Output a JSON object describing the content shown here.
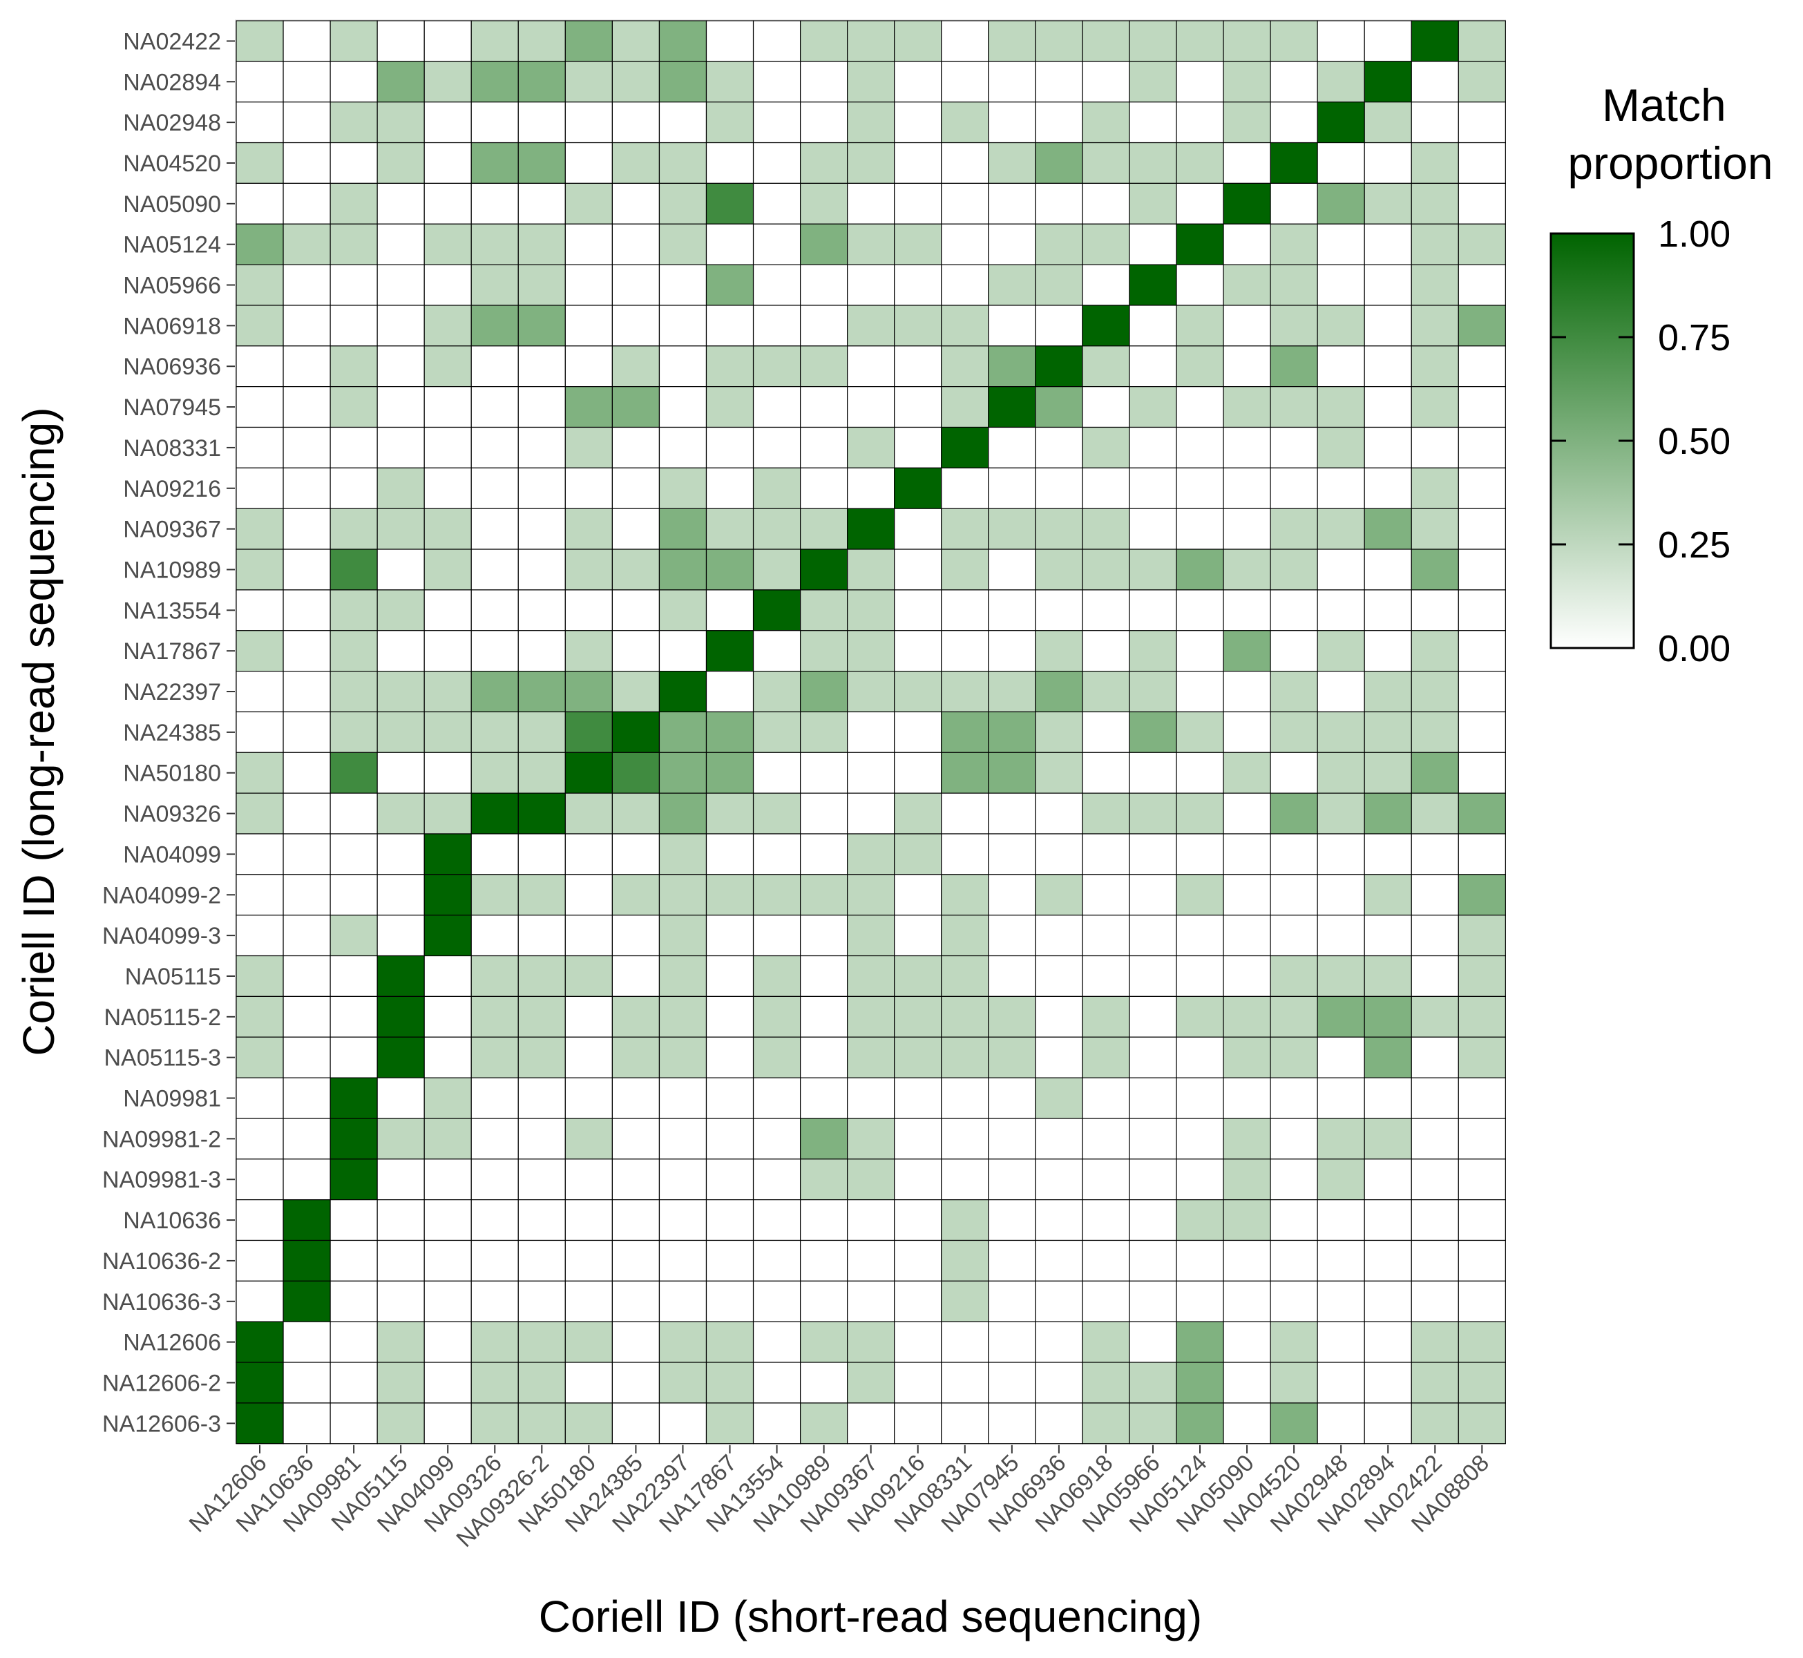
{
  "chart_data": {
    "type": "heatmap",
    "xlabel": "Coriell ID (short-read sequencing)",
    "ylabel": "Coriell ID (long-read sequencing)",
    "x_categories": [
      "NA12606",
      "NA10636",
      "NA09981",
      "NA05115",
      "NA04099",
      "NA09326",
      "NA09326-2",
      "NA50180",
      "NA24385",
      "NA22397",
      "NA17867",
      "NA13554",
      "NA10989",
      "NA09367",
      "NA09216",
      "NA08331",
      "NA07945",
      "NA06936",
      "NA06918",
      "NA05966",
      "NA05124",
      "NA05090",
      "NA04520",
      "NA02948",
      "NA02894",
      "NA02422",
      "NA08808"
    ],
    "y_categories": [
      "NA02422",
      "NA02894",
      "NA02948",
      "NA04520",
      "NA05090",
      "NA05124",
      "NA05966",
      "NA06918",
      "NA06936",
      "NA07945",
      "NA08331",
      "NA09216",
      "NA09367",
      "NA10989",
      "NA13554",
      "NA17867",
      "NA22397",
      "NA24385",
      "NA50180",
      "NA09326",
      "NA04099",
      "NA04099-2",
      "NA04099-3",
      "NA05115",
      "NA05115-2",
      "NA05115-3",
      "NA09981",
      "NA09981-2",
      "NA09981-3",
      "NA10636",
      "NA10636-2",
      "NA10636-3",
      "NA12606",
      "NA12606-2",
      "NA12606-3"
    ],
    "values": [
      [
        0.25,
        0,
        0.25,
        0,
        0,
        0.25,
        0.25,
        0.5,
        0.25,
        0.5,
        0,
        0,
        0.25,
        0.25,
        0.25,
        0,
        0.25,
        0.25,
        0.25,
        0.25,
        0.25,
        0.25,
        0.25,
        0,
        0,
        1,
        0.25
      ],
      [
        0,
        0,
        0,
        0.5,
        0.25,
        0.5,
        0.5,
        0.25,
        0.25,
        0.5,
        0.25,
        0,
        0,
        0.25,
        0,
        0,
        0,
        0,
        0,
        0.25,
        0,
        0.25,
        0,
        0.25,
        1,
        0,
        0.25
      ],
      [
        0,
        0,
        0.25,
        0.25,
        0,
        0,
        0,
        0,
        0,
        0,
        0.25,
        0,
        0,
        0.25,
        0,
        0.25,
        0,
        0,
        0.25,
        0,
        0,
        0.25,
        0,
        1,
        0.25,
        0,
        0
      ],
      [
        0.25,
        0,
        0,
        0.25,
        0,
        0.5,
        0.5,
        0,
        0.25,
        0.25,
        0,
        0,
        0.25,
        0.25,
        0,
        0,
        0.25,
        0.5,
        0.25,
        0.25,
        0.25,
        0,
        1,
        0,
        0,
        0.25,
        0
      ],
      [
        0,
        0,
        0.25,
        0,
        0,
        0,
        0,
        0.25,
        0,
        0.25,
        0.75,
        0,
        0.25,
        0,
        0,
        0,
        0,
        0,
        0,
        0.25,
        0,
        1,
        0,
        0.5,
        0.25,
        0.25,
        0
      ],
      [
        0.5,
        0.25,
        0.25,
        0,
        0.25,
        0.25,
        0.25,
        0,
        0,
        0.25,
        0,
        0,
        0.5,
        0.25,
        0.25,
        0,
        0,
        0.25,
        0.25,
        0,
        1,
        0,
        0.25,
        0,
        0,
        0.25,
        0.25
      ],
      [
        0.25,
        0,
        0,
        0,
        0,
        0.25,
        0.25,
        0,
        0,
        0,
        0.5,
        0,
        0,
        0,
        0,
        0,
        0.25,
        0.25,
        0,
        1,
        0,
        0.25,
        0.25,
        0,
        0,
        0.25,
        0
      ],
      [
        0.25,
        0,
        0,
        0,
        0.25,
        0.5,
        0.5,
        0,
        0,
        0,
        0,
        0,
        0,
        0.25,
        0.25,
        0.25,
        0,
        0,
        1,
        0,
        0.25,
        0,
        0.25,
        0.25,
        0,
        0.25,
        0.5
      ],
      [
        0,
        0,
        0.25,
        0,
        0.25,
        0,
        0,
        0,
        0.25,
        0,
        0.25,
        0.25,
        0.25,
        0,
        0,
        0.25,
        0.5,
        1,
        0.25,
        0,
        0.25,
        0,
        0.5,
        0,
        0,
        0.25,
        0
      ],
      [
        0,
        0,
        0.25,
        0,
        0,
        0,
        0,
        0.5,
        0.5,
        0,
        0.25,
        0,
        0,
        0,
        0,
        0.25,
        1,
        0.5,
        0,
        0.25,
        0,
        0.25,
        0.25,
        0.25,
        0,
        0.25,
        0
      ],
      [
        0,
        0,
        0,
        0,
        0,
        0,
        0,
        0.25,
        0,
        0,
        0,
        0,
        0,
        0.25,
        0,
        1,
        0,
        0,
        0.25,
        0,
        0,
        0,
        0,
        0.25,
        0,
        0,
        0
      ],
      [
        0,
        0,
        0,
        0.25,
        0,
        0,
        0,
        0,
        0,
        0.25,
        0,
        0.25,
        0,
        0,
        1,
        0,
        0,
        0,
        0,
        0,
        0,
        0,
        0,
        0,
        0,
        0.25,
        0
      ],
      [
        0.25,
        0,
        0.25,
        0.25,
        0.25,
        0,
        0,
        0.25,
        0,
        0.5,
        0.25,
        0.25,
        0.25,
        1,
        0,
        0.25,
        0.25,
        0.25,
        0.25,
        0,
        0,
        0,
        0.25,
        0.25,
        0.5,
        0.25,
        0
      ],
      [
        0.25,
        0,
        0.75,
        0,
        0.25,
        0,
        0,
        0.25,
        0.25,
        0.5,
        0.5,
        0.25,
        1,
        0.25,
        0,
        0.25,
        0,
        0.25,
        0.25,
        0.25,
        0.5,
        0.25,
        0.25,
        0,
        0,
        0.5,
        0
      ],
      [
        0,
        0,
        0.25,
        0.25,
        0,
        0,
        0,
        0,
        0,
        0.25,
        0,
        1,
        0.25,
        0.25,
        0,
        0,
        0,
        0,
        0,
        0,
        0,
        0,
        0,
        0,
        0,
        0,
        0
      ],
      [
        0.25,
        0,
        0.25,
        0,
        0,
        0,
        0,
        0.25,
        0,
        0,
        1,
        0,
        0.25,
        0.25,
        0,
        0,
        0,
        0.25,
        0,
        0.25,
        0,
        0.5,
        0,
        0.25,
        0,
        0.25,
        0
      ],
      [
        0,
        0,
        0.25,
        0.25,
        0.25,
        0.5,
        0.5,
        0.5,
        0.25,
        1,
        0,
        0.25,
        0.5,
        0.25,
        0.25,
        0.25,
        0.25,
        0.5,
        0.25,
        0.25,
        0,
        0,
        0.25,
        0,
        0.25,
        0.25,
        0
      ],
      [
        0,
        0,
        0.25,
        0.25,
        0.25,
        0.25,
        0.25,
        0.75,
        1,
        0.5,
        0.5,
        0.25,
        0.25,
        0,
        0,
        0.5,
        0.5,
        0.25,
        0,
        0.5,
        0.25,
        0,
        0.25,
        0.25,
        0.25,
        0.25,
        0
      ],
      [
        0.25,
        0,
        0.75,
        0,
        0,
        0.25,
        0.25,
        1,
        0.75,
        0.5,
        0.5,
        0,
        0,
        0,
        0,
        0.5,
        0.5,
        0.25,
        0,
        0,
        0,
        0.25,
        0,
        0.25,
        0.25,
        0.5,
        0
      ],
      [
        0.25,
        0,
        0,
        0.25,
        0.25,
        1,
        1,
        0.25,
        0.25,
        0.5,
        0.25,
        0.25,
        0,
        0,
        0.25,
        0,
        0,
        0,
        0.25,
        0.25,
        0.25,
        0,
        0.5,
        0.25,
        0.5,
        0.25,
        0.5
      ],
      [
        0,
        0,
        0,
        0,
        1,
        0,
        0,
        0,
        0,
        0.25,
        0,
        0,
        0,
        0.25,
        0.25,
        0,
        0,
        0,
        0,
        0,
        0,
        0,
        0,
        0,
        0,
        0,
        0
      ],
      [
        0,
        0,
        0,
        0,
        1,
        0.25,
        0.25,
        0,
        0.25,
        0.25,
        0.25,
        0.25,
        0.25,
        0.25,
        0,
        0.25,
        0,
        0.25,
        0,
        0,
        0.25,
        0,
        0,
        0,
        0.25,
        0,
        0.5
      ],
      [
        0,
        0,
        0.25,
        0,
        1,
        0,
        0,
        0,
        0,
        0.25,
        0,
        0,
        0,
        0.25,
        0,
        0.25,
        0,
        0,
        0,
        0,
        0,
        0,
        0,
        0,
        0,
        0,
        0.25
      ],
      [
        0.25,
        0,
        0,
        1,
        0,
        0.25,
        0.25,
        0.25,
        0,
        0.25,
        0,
        0.25,
        0,
        0.25,
        0.25,
        0.25,
        0,
        0,
        0,
        0,
        0,
        0,
        0.25,
        0.25,
        0.25,
        0,
        0.25
      ],
      [
        0.25,
        0,
        0,
        1,
        0,
        0.25,
        0.25,
        0,
        0.25,
        0.25,
        0,
        0.25,
        0,
        0.25,
        0.25,
        0.25,
        0.25,
        0,
        0.25,
        0,
        0.25,
        0.25,
        0.25,
        0.5,
        0.5,
        0.25,
        0.25
      ],
      [
        0.25,
        0,
        0,
        1,
        0,
        0.25,
        0.25,
        0,
        0.25,
        0.25,
        0,
        0.25,
        0,
        0.25,
        0.25,
        0.25,
        0.25,
        0,
        0.25,
        0,
        0,
        0.25,
        0.25,
        0,
        0.5,
        0,
        0.25
      ],
      [
        0,
        0,
        1,
        0,
        0.25,
        0,
        0,
        0,
        0,
        0,
        0,
        0,
        0,
        0,
        0,
        0,
        0,
        0.25,
        0,
        0,
        0,
        0,
        0,
        0,
        0,
        0,
        0
      ],
      [
        0,
        0,
        1,
        0.25,
        0.25,
        0,
        0,
        0.25,
        0,
        0,
        0,
        0,
        0.5,
        0.25,
        0,
        0,
        0,
        0,
        0,
        0,
        0,
        0.25,
        0,
        0.25,
        0.25,
        0,
        0
      ],
      [
        0,
        0,
        1,
        0,
        0,
        0,
        0,
        0,
        0,
        0,
        0,
        0,
        0.25,
        0.25,
        0,
        0,
        0,
        0,
        0,
        0,
        0,
        0.25,
        0,
        0.25,
        0,
        0,
        0
      ],
      [
        0,
        1,
        0,
        0,
        0,
        0,
        0,
        0,
        0,
        0,
        0,
        0,
        0,
        0,
        0,
        0.25,
        0,
        0,
        0,
        0,
        0.25,
        0.25,
        0,
        0,
        0,
        0,
        0
      ],
      [
        0,
        1,
        0,
        0,
        0,
        0,
        0,
        0,
        0,
        0,
        0,
        0,
        0,
        0,
        0,
        0.25,
        0,
        0,
        0,
        0,
        0,
        0,
        0,
        0,
        0,
        0,
        0
      ],
      [
        0,
        1,
        0,
        0,
        0,
        0,
        0,
        0,
        0,
        0,
        0,
        0,
        0,
        0,
        0,
        0.25,
        0,
        0,
        0,
        0,
        0,
        0,
        0,
        0,
        0,
        0,
        0
      ],
      [
        1,
        0,
        0,
        0.25,
        0,
        0.25,
        0.25,
        0.25,
        0,
        0.25,
        0.25,
        0,
        0.25,
        0.25,
        0,
        0,
        0,
        0,
        0.25,
        0,
        0.5,
        0,
        0.25,
        0,
        0,
        0.25,
        0.25
      ],
      [
        1,
        0,
        0,
        0.25,
        0,
        0.25,
        0.25,
        0,
        0,
        0.25,
        0.25,
        0,
        0,
        0.25,
        0,
        0,
        0,
        0,
        0.25,
        0.25,
        0.5,
        0,
        0.25,
        0,
        0,
        0.25,
        0.25
      ],
      [
        1,
        0,
        0,
        0.25,
        0,
        0.25,
        0.25,
        0.25,
        0,
        0,
        0.25,
        0,
        0.25,
        0,
        0,
        0,
        0,
        0,
        0.25,
        0.25,
        0.5,
        0,
        0.5,
        0,
        0,
        0.25,
        0.25
      ]
    ],
    "legend": {
      "title_lines": [
        "Match",
        "proportion"
      ],
      "ticks": [
        "1.00",
        "0.75",
        "0.50",
        "0.25",
        "0.00"
      ],
      "tick_values": [
        1.0,
        0.75,
        0.5,
        0.25,
        0.0
      ],
      "placement": "right",
      "low_color": "#ffffff",
      "high_color": "#006400"
    },
    "grid": false
  }
}
